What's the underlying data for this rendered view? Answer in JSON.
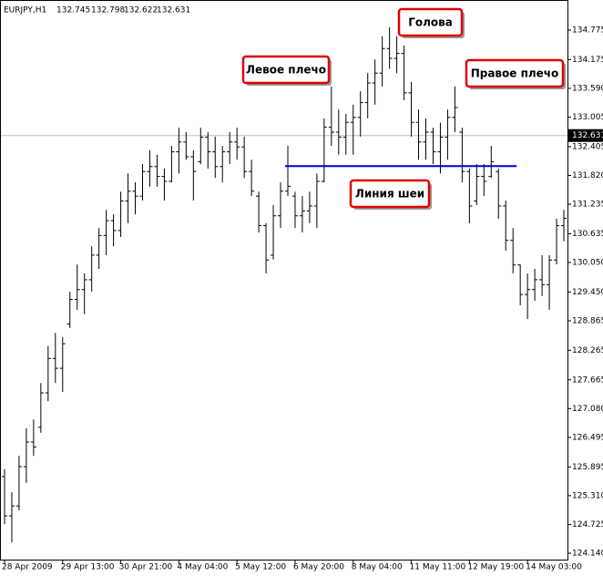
{
  "chart_data": {
    "type": "ohlc",
    "header": {
      "symbol": "EURJPY,H1",
      "open": 132.745,
      "high": 132.798,
      "low": 132.622,
      "close": 132.631
    },
    "categories": [
      "28 Apr 2009",
      null,
      null,
      null,
      null,
      null,
      null,
      null,
      "29 Apr 13:00",
      null,
      null,
      null,
      null,
      null,
      null,
      null,
      "30 Apr 21:00",
      null,
      null,
      null,
      null,
      null,
      null,
      null,
      "4 May 04:00",
      null,
      null,
      null,
      null,
      null,
      null,
      null,
      "5 May 12:00",
      null,
      null,
      null,
      null,
      null,
      null,
      null,
      "6 May 20:00",
      null,
      null,
      null,
      null,
      null,
      null,
      null,
      "8 May 04:00",
      null,
      null,
      null,
      null,
      null,
      null,
      null,
      "11 May 11:00",
      null,
      null,
      null,
      null,
      null,
      null,
      null,
      "12 May 19:00",
      null,
      null,
      null,
      null,
      null,
      null,
      null,
      "14 May 03:00",
      null,
      null,
      null,
      null,
      null
    ],
    "open": [
      125.7,
      124.9,
      125.1,
      125.9,
      126.4,
      126.7,
      127.4,
      128.1,
      127.9,
      128.8,
      129.3,
      129.5,
      129.7,
      130.2,
      130.6,
      130.9,
      130.7,
      131.3,
      131.5,
      131.4,
      131.9,
      132.0,
      131.8,
      131.7,
      132.3,
      132.5,
      132.2,
      132.1,
      132.6,
      132.3,
      132.0,
      132.3,
      132.5,
      132.4,
      131.9,
      131.4,
      130.8,
      130.2,
      131.0,
      131.5,
      131.4,
      131.0,
      131.1,
      131.2,
      131.7,
      132.8,
      132.7,
      132.6,
      132.9,
      133.0,
      133.3,
      133.7,
      133.9,
      134.4,
      134.2,
      134.3,
      133.5,
      132.9,
      132.5,
      132.7,
      132.3,
      132.6,
      133.0,
      132.7,
      131.9,
      131.3,
      131.8,
      131.8,
      131.9,
      131.2,
      130.5,
      130.0,
      129.4,
      129.5,
      129.7,
      129.6,
      130.1,
      130.8
    ],
    "high": [
      125.85,
      125.38,
      126.12,
      126.68,
      126.86,
      127.6,
      128.35,
      128.62,
      128.53,
      129.46,
      130.01,
      129.83,
      130.38,
      130.75,
      131.12,
      131.03,
      131.49,
      131.86,
      131.68,
      132.05,
      132.33,
      132.24,
      131.96,
      132.42,
      132.79,
      132.7,
      132.33,
      132.79,
      132.7,
      132.61,
      132.42,
      132.7,
      132.79,
      132.61,
      132.14,
      131.49,
      130.85,
      131.22,
      131.68,
      132.42,
      131.49,
      131.4,
      131.49,
      131.86,
      132.98,
      133.63,
      133.16,
      133.07,
      133.26,
      133.53,
      133.9,
      134.18,
      134.65,
      134.83,
      134.65,
      134.46,
      133.72,
      133.16,
      132.98,
      132.79,
      132.89,
      133.16,
      133.63,
      132.79,
      131.96,
      132.05,
      132.05,
      132.42,
      131.96,
      131.31,
      130.75,
      130.01,
      129.83,
      129.92,
      130.2,
      130.2,
      130.94,
      131.12
    ],
    "low": [
      124.73,
      124.36,
      125.01,
      125.57,
      126.12,
      126.59,
      127.23,
      127.6,
      127.42,
      128.72,
      129.09,
      129.0,
      129.46,
      129.92,
      130.2,
      130.38,
      130.57,
      130.85,
      131.03,
      131.31,
      131.59,
      131.59,
      131.31,
      131.68,
      131.86,
      132.14,
      131.31,
      132.05,
      131.96,
      131.77,
      131.68,
      132.05,
      132.14,
      131.77,
      131.4,
      130.66,
      129.83,
      130.11,
      130.75,
      131.4,
      130.75,
      130.66,
      130.85,
      130.75,
      131.68,
      132.42,
      132.24,
      132.24,
      132.24,
      132.61,
      132.98,
      133.26,
      133.63,
      133.99,
      133.9,
      133.35,
      132.61,
      132.14,
      132.14,
      132.05,
      131.86,
      132.14,
      132.7,
      131.68,
      130.85,
      131.22,
      131.4,
      131.77,
      130.94,
      130.29,
      129.83,
      129.18,
      128.9,
      129.27,
      129.37,
      129.09,
      130.01,
      130.48
    ],
    "close": [
      124.9,
      125.1,
      125.9,
      126.4,
      126.3,
      127.4,
      128.1,
      127.9,
      128.4,
      129.3,
      129.5,
      129.7,
      130.2,
      130.6,
      130.9,
      130.7,
      131.3,
      131.5,
      131.4,
      131.9,
      132.0,
      131.8,
      131.7,
      132.3,
      132.5,
      132.2,
      131.9,
      132.6,
      132.3,
      132.0,
      132.3,
      132.5,
      132.4,
      131.9,
      131.5,
      130.8,
      130.1,
      131.0,
      131.5,
      131.6,
      131.0,
      131.1,
      131.2,
      131.7,
      132.8,
      132.7,
      132.6,
      132.9,
      133.0,
      133.3,
      133.7,
      133.9,
      134.4,
      134.2,
      134.3,
      133.5,
      132.9,
      132.5,
      132.7,
      132.3,
      132.6,
      133.0,
      133.2,
      131.9,
      131.2,
      131.8,
      131.7,
      132.1,
      131.2,
      130.5,
      130.0,
      129.4,
      129.5,
      129.7,
      129.6,
      130.1,
      130.8,
      130.95
    ],
    "color": "#000000",
    "ylim": [
      123.992,
      135.294
    ],
    "yticks": [
      {
        "value": 124.14,
        "label": "124.140"
      },
      124.725,
      {
        "value": 125.31,
        "label": "125.310"
      },
      125.895,
      126.495,
      {
        "value": 127.08,
        "label": "127.080"
      },
      127.665,
      128.265,
      128.865,
      {
        "value": 129.45,
        "label": "129.450"
      },
      {
        "value": 130.05,
        "label": "130.050"
      },
      130.635,
      131.235,
      {
        "value": 131.82,
        "label": "131.820"
      },
      132.405,
      133.005,
      {
        "value": 133.59,
        "label": "133.590"
      },
      134.175,
      134.775
    ],
    "neckline": {
      "label": "Линия шеи",
      "value": 132.01,
      "color": "#0000cc",
      "start_index": 39,
      "end_index": 70
    },
    "annotations": [
      "Левое плечо",
      "Голова",
      "Правое плечо"
    ]
  }
}
